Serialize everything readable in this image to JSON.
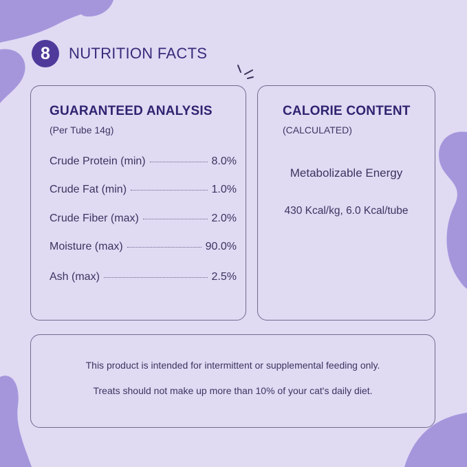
{
  "header": {
    "badge_number": "8",
    "title": "NUTRITION FACTS"
  },
  "colors": {
    "background": "#e0daf3",
    "blob": "#a596dc",
    "badge": "#4f3a9b",
    "border": "#716a8f"
  },
  "analysis": {
    "heading": "GUARANTEED ANALYSIS",
    "subheading": "(Per Tube 14g)",
    "rows": [
      {
        "label": "Crude Protein (min)",
        "value": "8.0%"
      },
      {
        "label": "Crude Fat (min)",
        "value": "1.0%"
      },
      {
        "label": "Crude Fiber (max)",
        "value": "2.0%"
      },
      {
        "label": "Moisture (max)",
        "value": "90.0%"
      },
      {
        "label": "Ash (max)",
        "value": "2.5%"
      }
    ]
  },
  "calorie": {
    "heading": "CALORIE CONTENT",
    "subheading": "(CALCULATED)",
    "energy_label": "Metabolizable Energy",
    "energy_value": "430 Kcal/kg, 6.0 Kcal/tube"
  },
  "notes": [
    "This product is intended for intermittent or supplemental feeding only.",
    "Treats should not make up more than 10% of your cat's daily diet."
  ]
}
